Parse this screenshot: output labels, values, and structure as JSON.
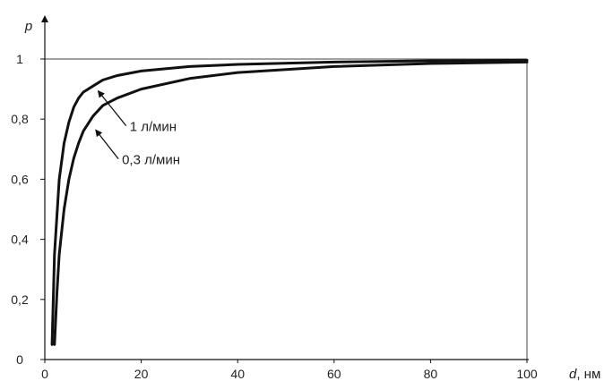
{
  "chart_data": {
    "type": "line",
    "title": "",
    "ylabel": "p",
    "xlabel_var": "d",
    "xlabel_unit": ", нм",
    "xlim": [
      0,
      100
    ],
    "ylim": [
      0,
      1.02
    ],
    "x_ticks": [
      0,
      20,
      40,
      60,
      80,
      100
    ],
    "y_ticks": [
      0,
      0.2,
      0.4,
      0.6,
      0.8,
      1
    ],
    "x_tick_labels": [
      "0",
      "20",
      "40",
      "60",
      "80",
      "100"
    ],
    "y_tick_labels": [
      "0",
      "0,2",
      "0,4",
      "0,6",
      "0,8",
      "1"
    ],
    "reference_line": {
      "y": 1
    },
    "grid": false,
    "series": [
      {
        "name": "1 л/мин",
        "x": [
          1.5,
          2,
          3,
          4,
          5,
          6,
          7,
          8,
          10,
          12,
          15,
          20,
          30,
          40,
          60,
          80,
          100
        ],
        "y": [
          0.05,
          0.35,
          0.6,
          0.72,
          0.79,
          0.84,
          0.87,
          0.89,
          0.91,
          0.93,
          0.945,
          0.96,
          0.975,
          0.982,
          0.99,
          0.994,
          0.996
        ]
      },
      {
        "name": "0,3 л/мин",
        "x": [
          2,
          2.5,
          3,
          4,
          5,
          6,
          7,
          8,
          10,
          12,
          15,
          20,
          30,
          40,
          60,
          80,
          100
        ],
        "y": [
          0.05,
          0.22,
          0.35,
          0.5,
          0.6,
          0.67,
          0.72,
          0.76,
          0.81,
          0.845,
          0.87,
          0.9,
          0.935,
          0.955,
          0.975,
          0.985,
          0.99
        ]
      }
    ],
    "annotations": [
      {
        "text": "1 л/мин",
        "x": 17.6,
        "y": 0.76,
        "arrow_to": [
          10.5,
          0.9
        ]
      },
      {
        "text": "0,3 л/мин",
        "x": 16.0,
        "y": 0.65,
        "arrow_to": [
          10.0,
          0.77
        ]
      }
    ]
  }
}
